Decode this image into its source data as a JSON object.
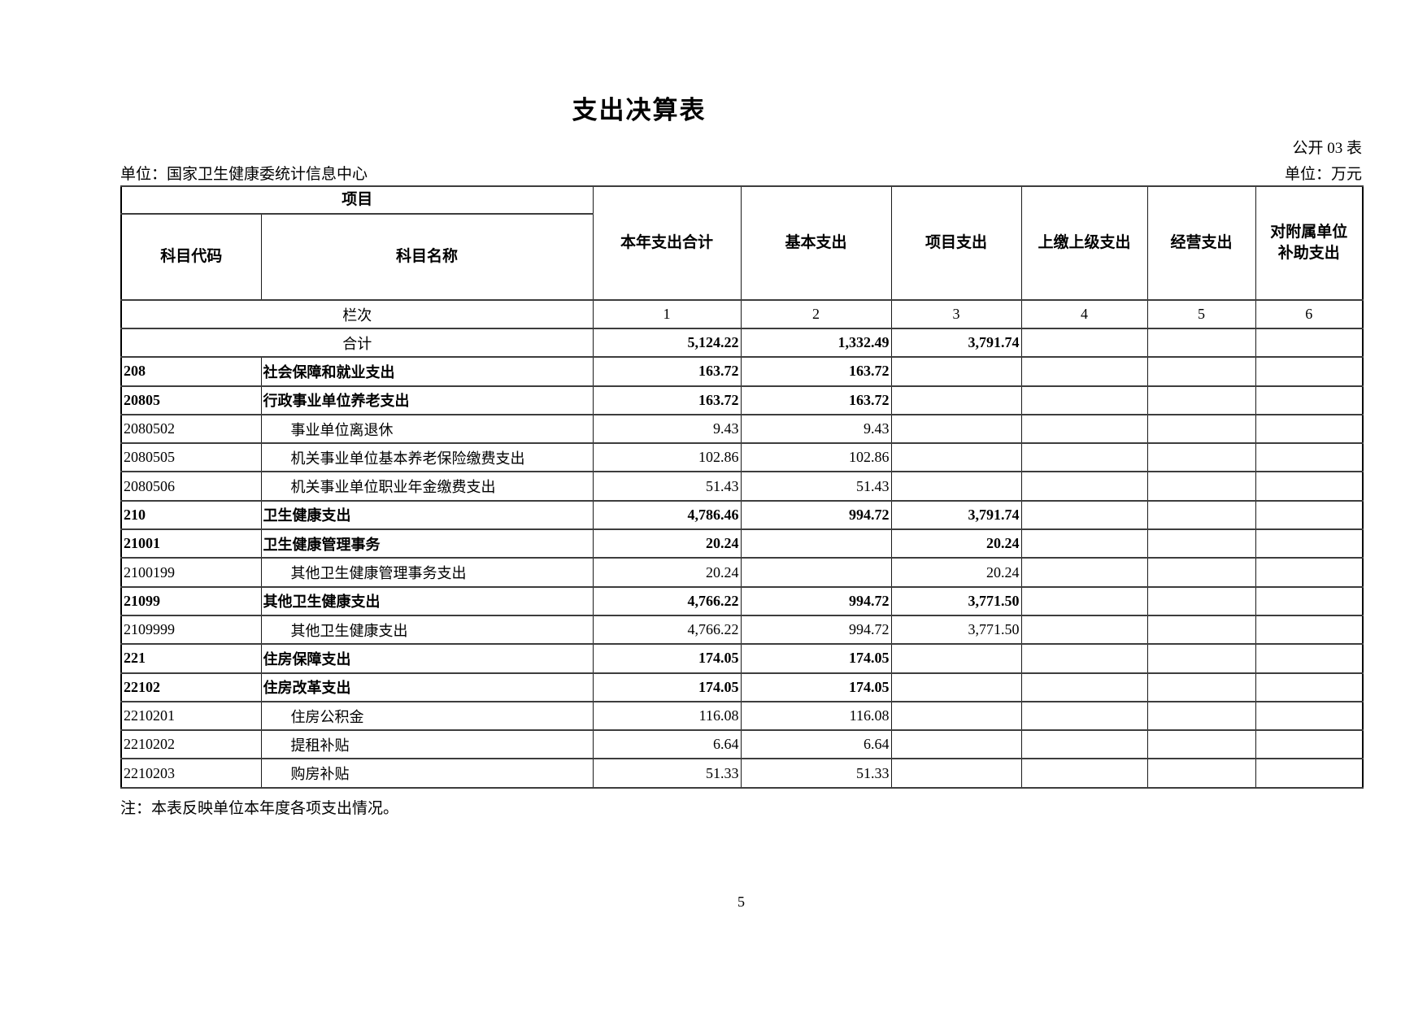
{
  "page": {
    "title": "支出决算表",
    "doc_label": "公开 03 表",
    "unit_org": "单位：国家卫生健康委统计信息中心",
    "unit_currency": "单位：万元",
    "note": "注：本表反映单位本年度各项支出情况。",
    "page_number": "5"
  },
  "table": {
    "header": {
      "project_group": "项目",
      "col_code": "科目代码",
      "col_name": "科目名称",
      "cols": [
        "本年支出合计",
        "基本支出",
        "项目支出",
        "上缴上级支出",
        "经营支出",
        "对附属单位\n补助支出"
      ]
    },
    "lanci": {
      "label": "栏次",
      "numbers": [
        "1",
        "2",
        "3",
        "4",
        "5",
        "6"
      ]
    },
    "rows": [
      {
        "type": "total",
        "code": "",
        "name": "合计",
        "values": [
          "5,124.22",
          "1,332.49",
          "3,791.74",
          "",
          "",
          ""
        ]
      },
      {
        "type": "class",
        "code": "208",
        "name": "社会保障和就业支出",
        "values": [
          "163.72",
          "163.72",
          "",
          "",
          "",
          ""
        ]
      },
      {
        "type": "class",
        "code": "20805",
        "name": "行政事业单位养老支出",
        "values": [
          "163.72",
          "163.72",
          "",
          "",
          "",
          ""
        ]
      },
      {
        "type": "leaf",
        "code": "2080502",
        "name": "事业单位离退休",
        "values": [
          "9.43",
          "9.43",
          "",
          "",
          "",
          ""
        ]
      },
      {
        "type": "leaf",
        "code": "2080505",
        "name": "机关事业单位基本养老保险缴费支出",
        "values": [
          "102.86",
          "102.86",
          "",
          "",
          "",
          ""
        ]
      },
      {
        "type": "leaf",
        "code": "2080506",
        "name": "机关事业单位职业年金缴费支出",
        "values": [
          "51.43",
          "51.43",
          "",
          "",
          "",
          ""
        ]
      },
      {
        "type": "class",
        "code": "210",
        "name": "卫生健康支出",
        "values": [
          "4,786.46",
          "994.72",
          "3,791.74",
          "",
          "",
          ""
        ]
      },
      {
        "type": "class",
        "code": "21001",
        "name": "卫生健康管理事务",
        "values": [
          "20.24",
          "",
          "20.24",
          "",
          "",
          ""
        ]
      },
      {
        "type": "leaf",
        "code": "2100199",
        "name": "其他卫生健康管理事务支出",
        "values": [
          "20.24",
          "",
          "20.24",
          "",
          "",
          ""
        ]
      },
      {
        "type": "class",
        "code": "21099",
        "name": "其他卫生健康支出",
        "values": [
          "4,766.22",
          "994.72",
          "3,771.50",
          "",
          "",
          ""
        ]
      },
      {
        "type": "leaf",
        "code": "2109999",
        "name": "其他卫生健康支出",
        "values": [
          "4,766.22",
          "994.72",
          "3,771.50",
          "",
          "",
          ""
        ]
      },
      {
        "type": "class",
        "code": "221",
        "name": "住房保障支出",
        "values": [
          "174.05",
          "174.05",
          "",
          "",
          "",
          ""
        ]
      },
      {
        "type": "class",
        "code": "22102",
        "name": "住房改革支出",
        "values": [
          "174.05",
          "174.05",
          "",
          "",
          "",
          ""
        ]
      },
      {
        "type": "leaf",
        "code": "2210201",
        "name": "住房公积金",
        "values": [
          "116.08",
          "116.08",
          "",
          "",
          "",
          ""
        ]
      },
      {
        "type": "leaf",
        "code": "2210202",
        "name": "提租补贴",
        "values": [
          "6.64",
          "6.64",
          "",
          "",
          "",
          ""
        ]
      },
      {
        "type": "leaf",
        "code": "2210203",
        "name": "购房补贴",
        "values": [
          "51.33",
          "51.33",
          "",
          "",
          "",
          ""
        ]
      }
    ]
  }
}
